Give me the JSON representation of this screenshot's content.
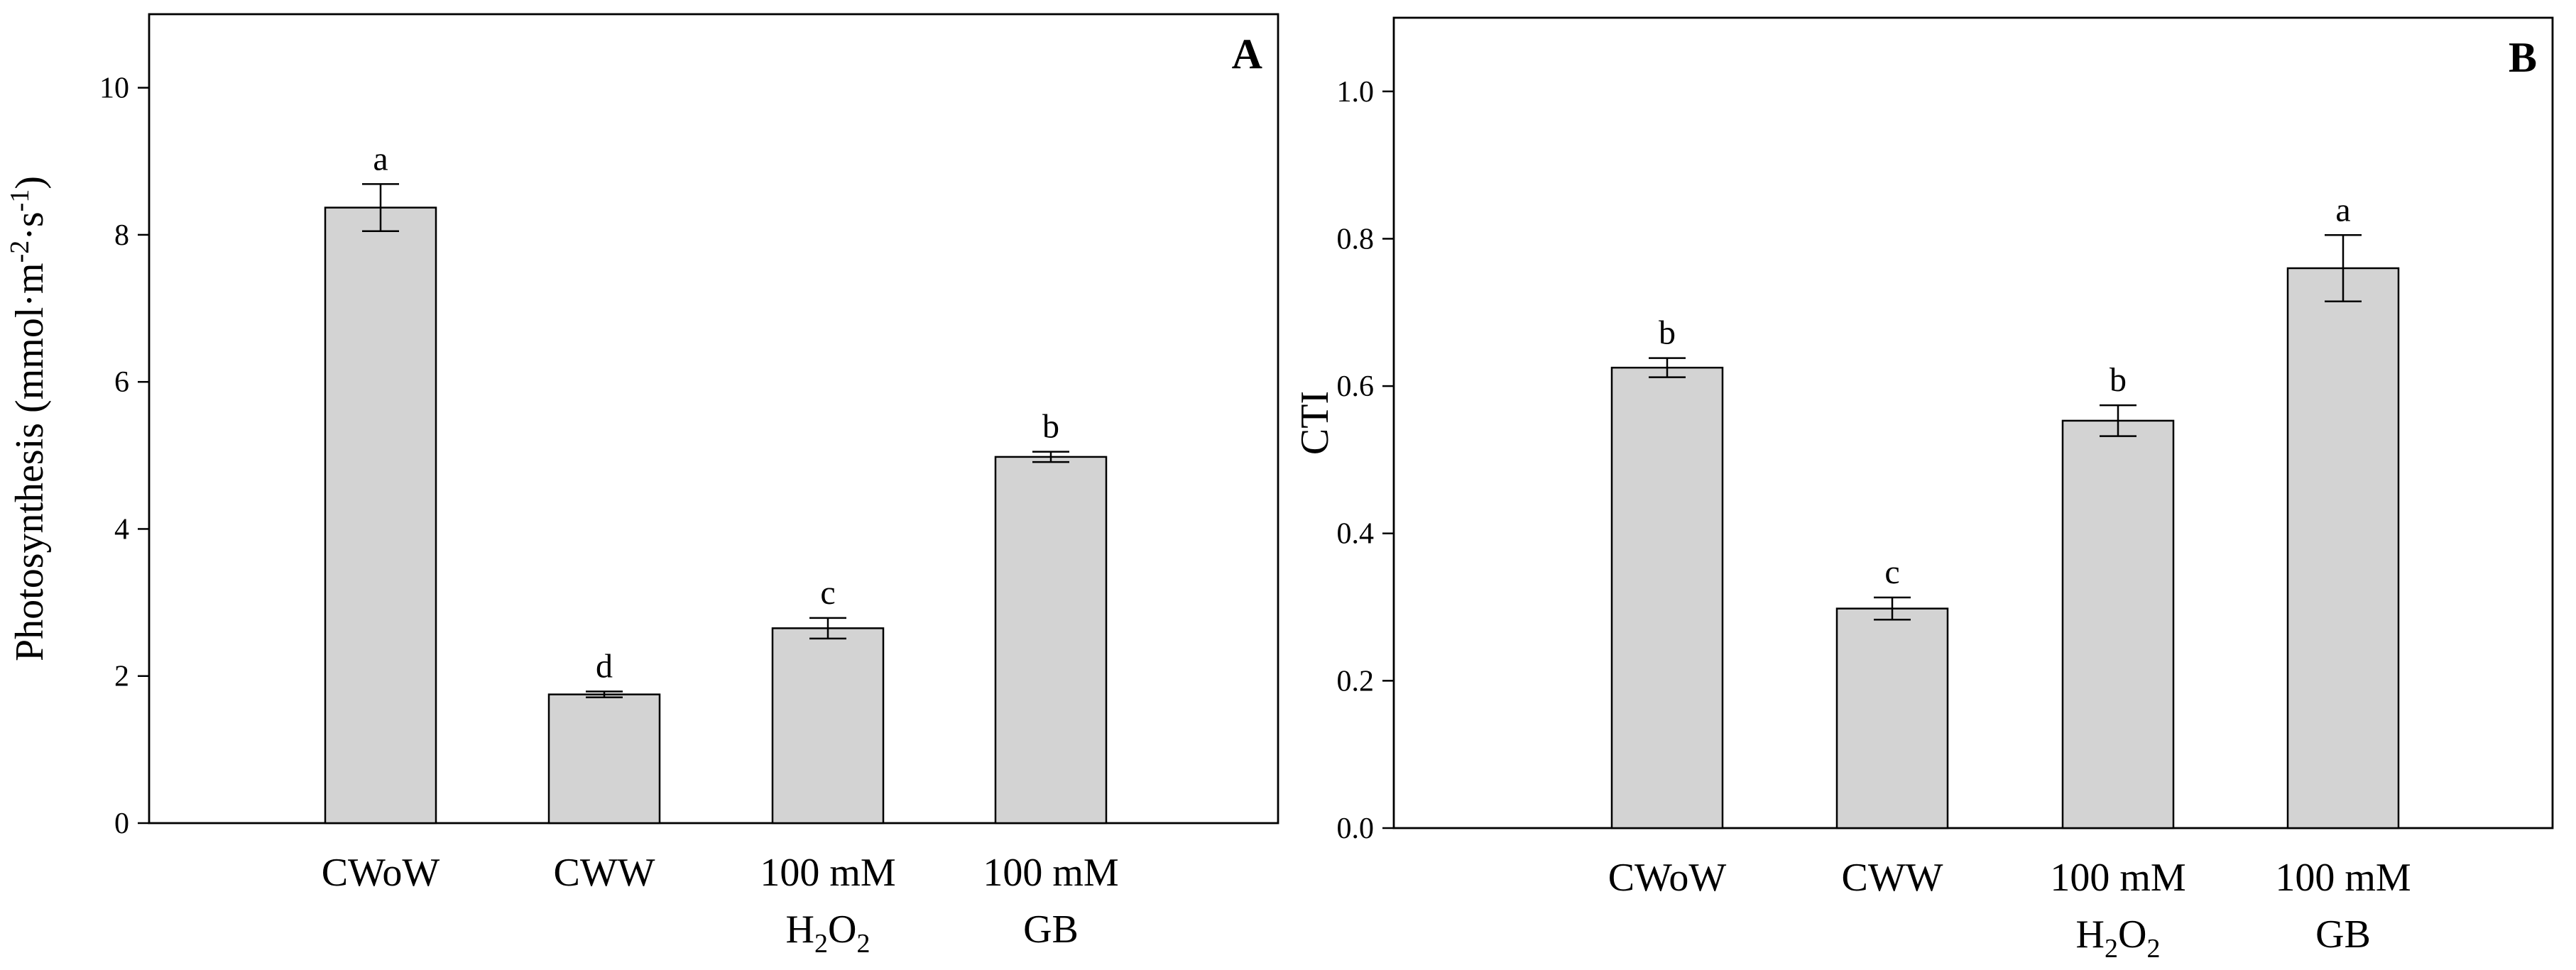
{
  "chart_data": [
    {
      "panel": "A",
      "type": "bar",
      "ylabel": "Photosynthesis (mmol·m-2·s-1)",
      "ylabel_parts": {
        "prefix": "Photosynthesis (mmol·m",
        "sup1": "-2",
        "mid": "·s",
        "sup2": "-1",
        "suffix": ")"
      },
      "xlabel": "",
      "ylim": [
        0,
        11
      ],
      "yticks": [
        0,
        2,
        4,
        6,
        8,
        10
      ],
      "ytick_labels": [
        "0",
        "2",
        "4",
        "6",
        "8",
        "10"
      ],
      "categories": [
        {
          "line1": "CWoW",
          "line2": ""
        },
        {
          "line1": "CWW",
          "line2": ""
        },
        {
          "line1": "100 mM",
          "line2": "H2O2",
          "line2_parts": [
            "H",
            "2",
            "O",
            "2"
          ]
        },
        {
          "line1": "100 mM",
          "line2": "GB"
        }
      ],
      "values": [
        8.37,
        1.75,
        2.65,
        4.98
      ],
      "errors": [
        0.32,
        0.04,
        0.14,
        0.07
      ],
      "significance": [
        "a",
        "d",
        "c",
        "b"
      ]
    },
    {
      "panel": "B",
      "type": "bar",
      "ylabel": "CTI",
      "xlabel": "",
      "ylim": [
        0,
        1.1
      ],
      "yticks": [
        0.0,
        0.2,
        0.4,
        0.6,
        0.8,
        1.0
      ],
      "ytick_labels": [
        "0.0",
        "0.2",
        "0.4",
        "0.6",
        "0.8",
        "1.0"
      ],
      "categories": [
        {
          "line1": "CWoW",
          "line2": ""
        },
        {
          "line1": "CWW",
          "line2": ""
        },
        {
          "line1": "100 mM",
          "line2": "H2O2",
          "line2_parts": [
            "H",
            "2",
            "O",
            "2"
          ]
        },
        {
          "line1": "100 mM",
          "line2": "GB"
        }
      ],
      "values": [
        0.625,
        0.298,
        0.553,
        0.76
      ],
      "errors": [
        0.013,
        0.015,
        0.021,
        0.045
      ],
      "significance": [
        "b",
        "c",
        "b",
        "a"
      ]
    }
  ]
}
